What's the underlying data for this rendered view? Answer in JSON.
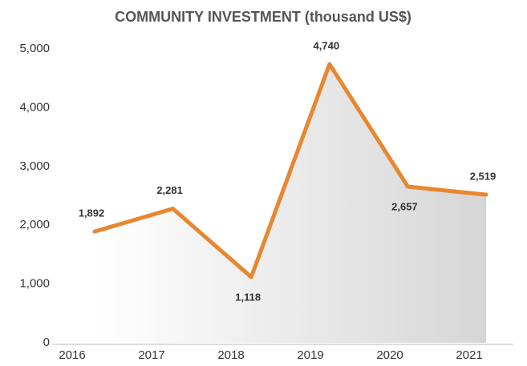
{
  "chart_data": {
    "type": "line",
    "title": "COMMUNITY INVESTMENT (thousand US$)",
    "categories": [
      "2016",
      "2017",
      "2018",
      "2019",
      "2020",
      "2021"
    ],
    "series": [
      {
        "name": "Community investment",
        "color": "#e8872f",
        "values": [
          1892,
          2281,
          1118,
          4740,
          2657,
          2519
        ],
        "value_labels": [
          "1,892",
          "2,281",
          "1,118",
          "4,740",
          "2,657",
          "2,519"
        ]
      }
    ],
    "ylim": [
      0,
      5000
    ],
    "yticks": [
      0,
      {
        "value": 1000,
        "label": "1,000"
      },
      {
        "value": 2000,
        "label": "2,000"
      },
      {
        "value": 3000,
        "label": "3,000"
      },
      {
        "value": 4000,
        "label": "4,000"
      },
      {
        "value": 5000,
        "label": "5,000"
      }
    ],
    "grid": false
  }
}
